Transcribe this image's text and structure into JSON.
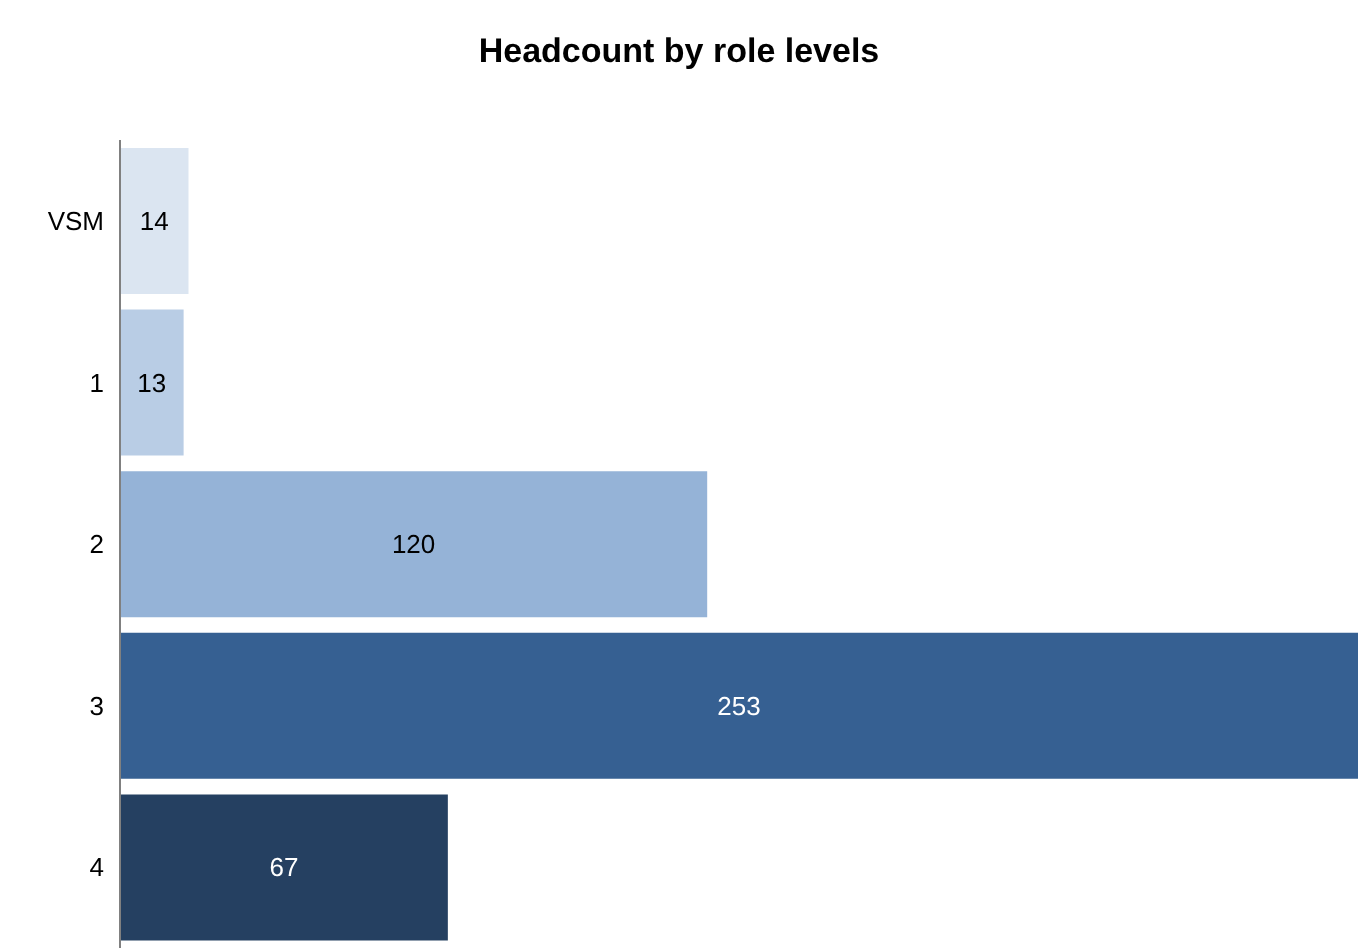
{
  "chart_data": {
    "type": "bar",
    "orientation": "horizontal",
    "title": "Headcount by role levels",
    "categories": [
      "VSM",
      "1",
      "2",
      "3",
      "4"
    ],
    "values": [
      14,
      13,
      120,
      253,
      67
    ],
    "colors": [
      "#dbe5f1",
      "#b9cde5",
      "#95b3d7",
      "#366092",
      "#254061"
    ],
    "data_labels": true,
    "tick_labels": "y"
  }
}
